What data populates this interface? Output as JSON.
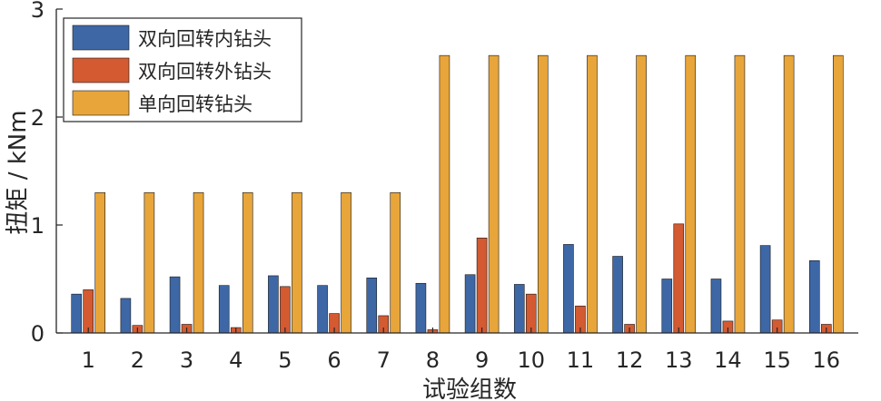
{
  "chart_data": {
    "type": "bar",
    "xlabel": "试验组数",
    "ylabel": "扭矩 / kNm",
    "ylim": [
      0,
      3
    ],
    "yticks": [
      "0",
      "1",
      "2",
      "3"
    ],
    "categories": [
      "1",
      "2",
      "3",
      "4",
      "5",
      "6",
      "7",
      "8",
      "9",
      "10",
      "11",
      "12",
      "13",
      "14",
      "15",
      "16"
    ],
    "legend_position": "top-left",
    "series": [
      {
        "name": "双向回转内钻头",
        "color": "#3e67a6",
        "values": [
          0.36,
          0.32,
          0.52,
          0.44,
          0.53,
          0.44,
          0.51,
          0.46,
          0.54,
          0.45,
          0.82,
          0.71,
          0.5,
          0.5,
          0.81,
          0.67
        ]
      },
      {
        "name": "双向回转外钻头",
        "color": "#d35a31",
        "values": [
          0.4,
          0.07,
          0.08,
          0.05,
          0.43,
          0.18,
          0.16,
          0.03,
          0.88,
          0.36,
          0.25,
          0.08,
          1.01,
          0.11,
          0.12,
          0.08
        ]
      },
      {
        "name": "单向回转钻头",
        "color": "#e8a53a",
        "values": [
          1.3,
          1.3,
          1.3,
          1.3,
          1.3,
          1.3,
          1.3,
          2.57,
          2.57,
          2.57,
          2.57,
          2.57,
          2.57,
          2.57,
          2.57,
          2.57
        ]
      }
    ]
  }
}
